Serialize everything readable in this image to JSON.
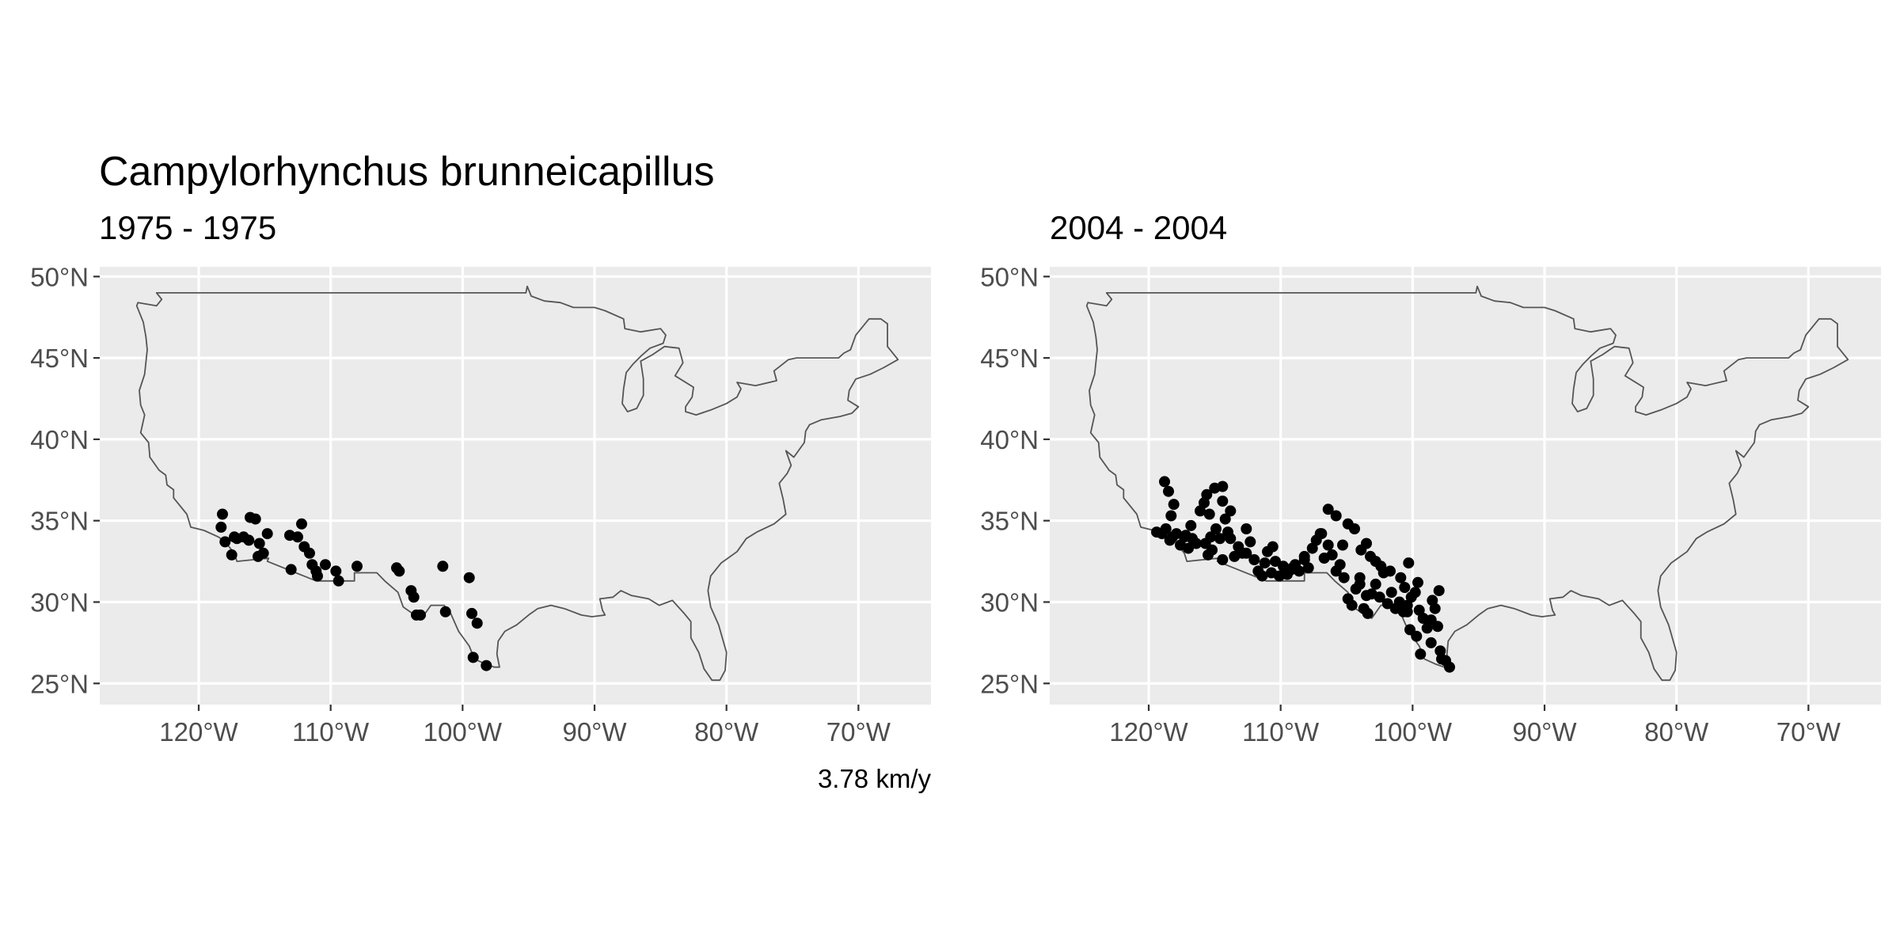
{
  "title": "Campylorhynchus brunneicapillus",
  "caption": "3.78 km/y",
  "axes": {
    "xlim": [
      -127.5,
      -64.5
    ],
    "ylim": [
      23.7,
      50.6
    ],
    "x_ticks": [
      -120,
      -110,
      -100,
      -90,
      -80,
      -70
    ],
    "x_tick_labels": [
      "120°W",
      "110°W",
      "100°W",
      "90°W",
      "80°W",
      "70°W"
    ],
    "y_ticks": [
      25,
      30,
      35,
      40,
      45,
      50
    ],
    "y_tick_labels": [
      "25°N",
      "30°N",
      "35°N",
      "40°N",
      "45°N",
      "50°N"
    ],
    "grid": true
  },
  "colors": {
    "panel_background": "#ebebeb",
    "gridline": "#ffffff",
    "outline": "#555555",
    "points": "#000000",
    "tick_text": "#4d4d4d"
  },
  "map_outline": "Contiguous United States border",
  "chart_data": [
    {
      "type": "scatter",
      "subtitle": "1975 - 1975",
      "x": [
        -118.2,
        -118.3,
        -118.0,
        -117.1,
        -117.3,
        -116.6,
        -116.1,
        -115.7,
        -115.5,
        -115.1,
        -115.4,
        -114.8,
        -117.5,
        -116.2,
        -113.1,
        -112.5,
        -112.2,
        -112.0,
        -111.6,
        -111.4,
        -111.0,
        -110.4,
        -109.6,
        -109.4,
        -108.0,
        -113.0,
        -111.1,
        -104.8,
        -105.0,
        -103.9,
        -103.7,
        -103.5,
        -103.2,
        -101.5,
        -101.3,
        -99.5,
        -99.3,
        -98.9,
        -99.2,
        -98.2
      ],
      "y": [
        35.4,
        34.6,
        33.7,
        33.9,
        34.0,
        34.0,
        35.2,
        35.1,
        32.8,
        33.0,
        33.6,
        34.2,
        32.9,
        33.8,
        34.1,
        34.0,
        34.8,
        33.4,
        33.0,
        32.3,
        31.6,
        32.3,
        31.9,
        31.3,
        32.2,
        32.0,
        31.9,
        31.9,
        32.1,
        30.7,
        30.3,
        29.2,
        29.2,
        32.2,
        29.4,
        31.5,
        29.3,
        28.7,
        26.6,
        26.1
      ]
    },
    {
      "type": "scatter",
      "subtitle": "2004 - 2004",
      "x": [
        -119.0,
        -118.7,
        -118.4,
        -118.2,
        -118.3,
        -118.1,
        -117.9,
        -117.6,
        -117.3,
        -117.0,
        -116.7,
        -116.4,
        -116.1,
        -115.8,
        -115.6,
        -115.4,
        -115.3,
        -115.7,
        -115.5,
        -115.2,
        -114.9,
        -114.6,
        -114.4,
        -114.2,
        -114.0,
        -115.0,
        -114.4,
        -113.8,
        -113.5,
        -113.2,
        -112.9,
        -112.6,
        -112.3,
        -112.0,
        -111.7,
        -111.4,
        -111.2,
        -111.0,
        -110.7,
        -110.4,
        -110.1,
        -109.8,
        -109.5,
        -109.2,
        -108.9,
        -108.6,
        -108.2,
        -107.9,
        -107.6,
        -107.3,
        -107.0,
        -106.7,
        -106.4,
        -106.1,
        -105.8,
        -105.5,
        -105.2,
        -104.9,
        -104.6,
        -104.3,
        -104.0,
        -103.7,
        -103.4,
        -103.1,
        -102.8,
        -102.5,
        -102.2,
        -101.9,
        -101.6,
        -101.3,
        -101.0,
        -100.7,
        -100.4,
        -100.1,
        -99.8,
        -99.5,
        -99.2,
        -98.9,
        -98.6,
        -98.3,
        -98.0,
        -97.8,
        -97.5,
        -97.2,
        -98.6,
        -99.4,
        -99.7,
        -100.2,
        -100.4,
        -100.6,
        -103.9,
        -103.5,
        -103.2,
        -102.8,
        -104.4,
        -104.9,
        -105.3,
        -105.8,
        -106.4,
        -106.9,
        -104.0,
        -103.5,
        -102.4,
        -101.7,
        -100.9,
        -100.3,
        -99.6,
        -98.5,
        -98.1,
        -97.9,
        -112.6,
        -113.8,
        -114.4,
        -116.8,
        -117.2,
        -118.5,
        -118.8,
        -119.4,
        -110.6,
        -109.1,
        -108.2
      ],
      "y": [
        34.2,
        34.5,
        33.8,
        34.0,
        35.3,
        36.0,
        34.2,
        33.5,
        34.0,
        33.3,
        33.9,
        33.6,
        35.6,
        36.1,
        36.6,
        35.4,
        34.0,
        33.6,
        32.9,
        33.2,
        34.5,
        33.9,
        32.6,
        35.1,
        34.3,
        37.0,
        37.1,
        33.9,
        32.8,
        33.4,
        33.0,
        34.5,
        33.7,
        32.6,
        31.9,
        31.6,
        32.4,
        33.1,
        31.8,
        32.5,
        31.6,
        32.2,
        31.7,
        32.0,
        32.3,
        31.9,
        32.6,
        32.1,
        33.3,
        33.8,
        34.2,
        32.7,
        33.5,
        32.9,
        31.9,
        32.3,
        31.5,
        30.2,
        29.8,
        30.8,
        31.5,
        29.6,
        29.3,
        30.5,
        31.1,
        30.3,
        31.8,
        29.9,
        30.6,
        29.6,
        30.0,
        29.4,
        29.8,
        30.3,
        30.6,
        29.5,
        29.0,
        28.4,
        28.9,
        29.6,
        30.7,
        26.5,
        26.4,
        26.0,
        27.5,
        26.8,
        27.9,
        28.3,
        29.4,
        30.9,
        33.2,
        33.6,
        32.8,
        32.5,
        34.5,
        34.8,
        33.5,
        35.3,
        35.7,
        34.2,
        31.1,
        30.4,
        32.2,
        31.9,
        31.5,
        32.4,
        31.2,
        30.1,
        28.5,
        27.0,
        33.0,
        35.6,
        36.2,
        34.7,
        34.1,
        36.8,
        37.4,
        34.3,
        33.4,
        32.1,
        32.8
      ]
    }
  ]
}
